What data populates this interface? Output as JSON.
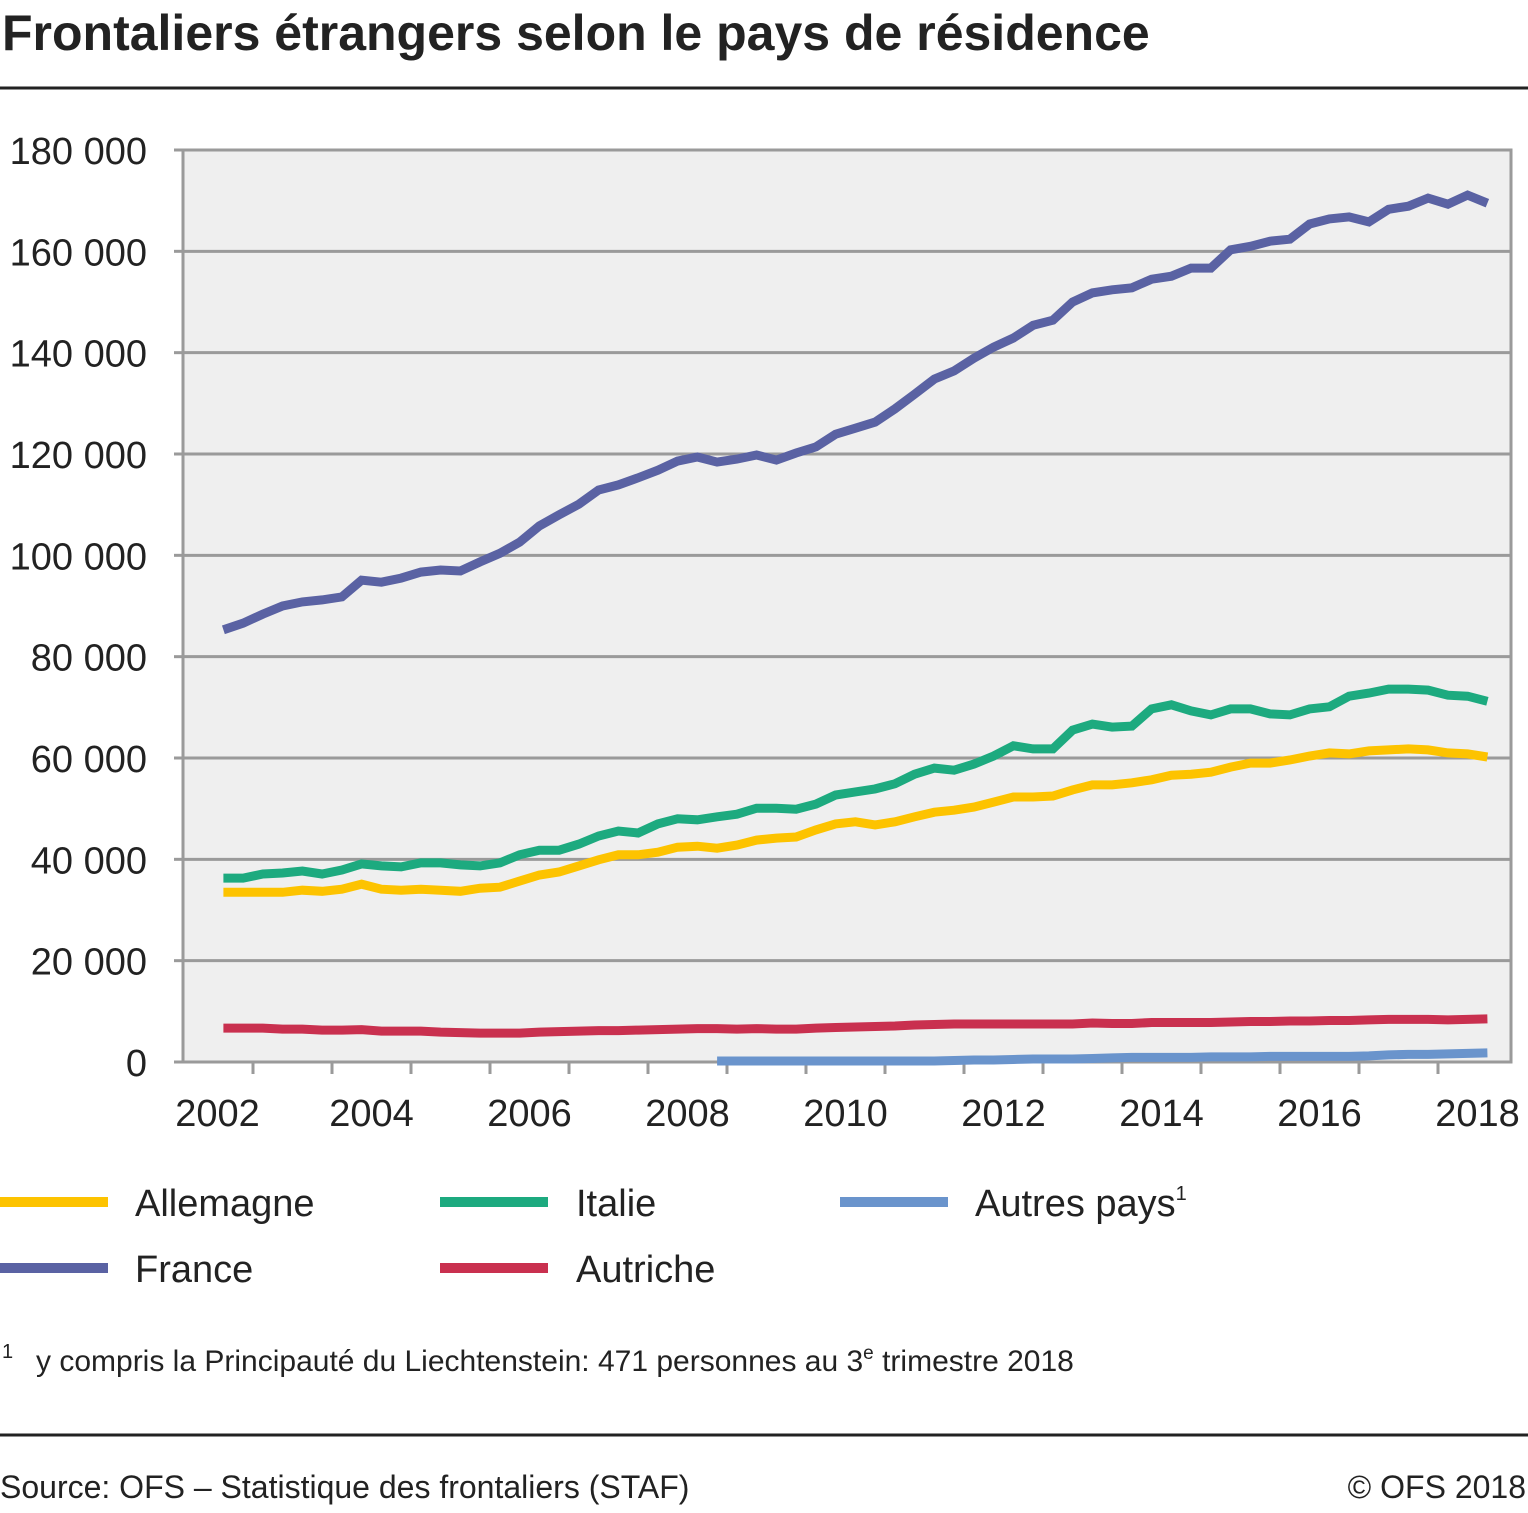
{
  "title": "Frontaliers étrangers selon le pays de résidence",
  "chart_data": {
    "type": "line",
    "title": "Frontaliers étrangers selon le pays de résidence",
    "xlabel": "",
    "ylabel": "",
    "ylim": [
      0,
      180000
    ],
    "yticks": [
      "0",
      "20 000",
      "40 000",
      "60 000",
      "80 000",
      "100 000",
      "120 000",
      "140 000",
      "160 000",
      "180 000"
    ],
    "ytick_values": [
      0,
      20000,
      40000,
      60000,
      80000,
      100000,
      120000,
      140000,
      160000,
      180000
    ],
    "xticks": [
      "2002",
      "2004",
      "2006",
      "2008",
      "2010",
      "2012",
      "2014",
      "2016",
      "2018"
    ],
    "x_start": "2002 Q3",
    "x_end": "2018 Q3",
    "x_frequency": "quarterly",
    "grid": true,
    "legend_position": "bottom",
    "series": [
      {
        "name": "Allemagne",
        "color": "#fdc300",
        "values": [
          33500,
          33500,
          33500,
          33500,
          33900,
          33700,
          34100,
          35100,
          34100,
          33900,
          34100,
          33900,
          33700,
          34300,
          34500,
          35700,
          36900,
          37500,
          38700,
          39900,
          40900,
          40900,
          41400,
          42400,
          42600,
          42200,
          42800,
          43800,
          44200,
          44400,
          45800,
          47000,
          47400,
          46800,
          47400,
          48400,
          49300,
          49700,
          50300,
          51300,
          52300,
          52300,
          52500,
          53700,
          54700,
          54700,
          55100,
          55700,
          56600,
          56800,
          57200,
          58200,
          59000,
          59000,
          59600,
          60400,
          61000,
          60800,
          61400,
          61600,
          61800,
          61600,
          61000,
          60800,
          60200
        ]
      },
      {
        "name": "France",
        "color": "#5a62a3",
        "values": [
          85300,
          86600,
          88400,
          90000,
          90800,
          91200,
          91800,
          95100,
          94700,
          95500,
          96700,
          97100,
          96900,
          98700,
          100400,
          102600,
          105800,
          108000,
          110100,
          112900,
          113900,
          115300,
          116800,
          118600,
          119400,
          118400,
          119000,
          119800,
          118800,
          120200,
          121400,
          123900,
          125100,
          126300,
          128900,
          131800,
          134800,
          136400,
          138900,
          141100,
          142900,
          145400,
          146400,
          150000,
          151800,
          152400,
          152800,
          154500,
          155100,
          156700,
          156700,
          160300,
          161000,
          162000,
          162400,
          165400,
          166400,
          166800,
          165800,
          168300,
          168900,
          170500,
          169300,
          171100,
          169500
        ]
      },
      {
        "name": "Italie",
        "color": "#1daa7f",
        "values": [
          36300,
          36300,
          37100,
          37300,
          37700,
          37100,
          37900,
          39100,
          38700,
          38500,
          39300,
          39300,
          38900,
          38700,
          39300,
          40900,
          41800,
          41800,
          43000,
          44600,
          45600,
          45200,
          47000,
          48000,
          47800,
          48400,
          48900,
          50100,
          50100,
          49900,
          50900,
          52700,
          53300,
          53900,
          54900,
          56800,
          58000,
          57600,
          58800,
          60400,
          62400,
          61800,
          61800,
          65500,
          66700,
          66100,
          66300,
          69700,
          70500,
          69300,
          68500,
          69700,
          69700,
          68700,
          68500,
          69700,
          70100,
          72200,
          72800,
          73600,
          73600,
          73400,
          72400,
          72200,
          71200
        ]
      },
      {
        "name": "Autriche",
        "color": "#c9304f",
        "values": [
          6700,
          6700,
          6700,
          6500,
          6500,
          6300,
          6300,
          6400,
          6100,
          6100,
          6100,
          5900,
          5800,
          5700,
          5700,
          5700,
          5900,
          6000,
          6100,
          6200,
          6200,
          6300,
          6400,
          6500,
          6600,
          6600,
          6500,
          6600,
          6500,
          6500,
          6700,
          6800,
          6900,
          7000,
          7100,
          7300,
          7400,
          7500,
          7500,
          7500,
          7500,
          7500,
          7500,
          7500,
          7700,
          7600,
          7600,
          7800,
          7800,
          7800,
          7800,
          7900,
          8000,
          8000,
          8100,
          8100,
          8200,
          8200,
          8300,
          8400,
          8400,
          8400,
          8300,
          8400,
          8500
        ]
      },
      {
        "name": "Autres pays",
        "footnote_ref": "1",
        "color": "#6a94cc",
        "values": [
          null,
          null,
          null,
          null,
          null,
          null,
          null,
          null,
          null,
          null,
          null,
          null,
          null,
          null,
          null,
          null,
          null,
          null,
          null,
          null,
          null,
          null,
          null,
          null,
          null,
          200,
          200,
          200,
          200,
          200,
          200,
          200,
          200,
          200,
          200,
          200,
          200,
          300,
          400,
          400,
          500,
          600,
          600,
          600,
          700,
          800,
          900,
          900,
          900,
          900,
          1000,
          1000,
          1000,
          1100,
          1100,
          1100,
          1100,
          1100,
          1200,
          1400,
          1500,
          1500,
          1600,
          1700,
          1800
        ]
      }
    ]
  },
  "legend": [
    "Allemagne",
    "Italie",
    "Autres pays",
    "France",
    "Autriche"
  ],
  "footnote": {
    "mark": "1",
    "text_before": "y compris la Principauté du Liechtenstein: 471 personnes au 3",
    "sup": "e",
    "text_after": " trimestre 2018"
  },
  "source": "Source: OFS – Statistique des frontaliers (STAF)",
  "copyright": "© OFS 2018"
}
